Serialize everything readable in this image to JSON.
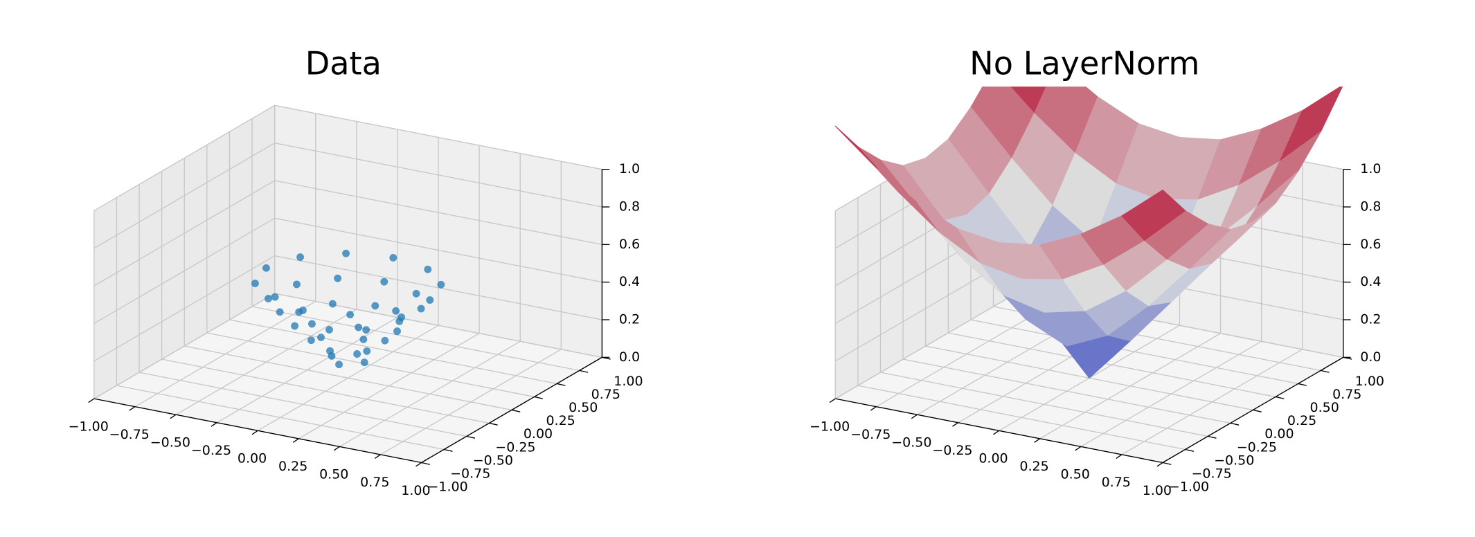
{
  "chart_data": [
    {
      "type": "scatter3d",
      "title": "Data",
      "color": "#1f77b4",
      "x": [
        0.1,
        0,
        -0.1,
        0,
        0.17,
        0,
        -0.17,
        -0.17,
        0,
        0.17,
        0.3,
        0.21,
        0,
        -0.21,
        -0.3,
        -0.21,
        0,
        0.21,
        0.38,
        0.24,
        0,
        -0.24,
        -0.38,
        -0.38,
        -0.24,
        0,
        0.24,
        0.38,
        0.5,
        0.43,
        0.25,
        0,
        -0.25,
        -0.43,
        -0.5,
        -0.43,
        -0.25,
        0,
        0.25,
        0.43
      ],
      "y": [
        0,
        0.1,
        0,
        -0.1,
        0.1,
        0.2,
        0.1,
        -0.1,
        -0.2,
        -0.1,
        0,
        0.21,
        0.3,
        0.21,
        0,
        -0.21,
        -0.3,
        -0.21,
        0.12,
        0.32,
        0.4,
        0.32,
        0.12,
        -0.12,
        -0.32,
        -0.4,
        -0.32,
        -0.12,
        0,
        0.25,
        0.43,
        0.5,
        0.43,
        0.25,
        0,
        -0.25,
        -0.43,
        -0.5,
        -0.43,
        -0.25
      ],
      "z": [
        0.1,
        0.1,
        0.1,
        0.1,
        0.2,
        0.2,
        0.2,
        0.2,
        0.2,
        0.2,
        0.3,
        0.3,
        0.3,
        0.3,
        0.3,
        0.3,
        0.3,
        0.3,
        0.4,
        0.4,
        0.4,
        0.4,
        0.4,
        0.4,
        0.4,
        0.4,
        0.4,
        0.4,
        0.5,
        0.5,
        0.5,
        0.5,
        0.5,
        0.5,
        0.5,
        0.5,
        0.5,
        0.5,
        0.5,
        0.5
      ],
      "xlim": [
        -1,
        1
      ],
      "ylim": [
        -1,
        1
      ],
      "zlim": [
        0,
        1
      ],
      "xticks": [
        {
          "value": -1,
          "label": "−1.00"
        },
        {
          "value": -0.75,
          "label": "−0.75"
        },
        {
          "value": -0.5,
          "label": "−0.50"
        },
        {
          "value": -0.25,
          "label": "−0.25"
        },
        {
          "value": 0,
          "label": "0.00"
        },
        0.25,
        {
          "value": 0.5,
          "label": "0.50"
        },
        0.75,
        {
          "value": 1,
          "label": "1.00"
        }
      ],
      "yticks": [
        {
          "value": -1,
          "label": "−1.00"
        },
        {
          "value": -0.75,
          "label": "−0.75"
        },
        {
          "value": -0.5,
          "label": "−0.50"
        },
        {
          "value": -0.25,
          "label": "−0.25"
        },
        {
          "value": 0,
          "label": "0.00"
        },
        0.25,
        {
          "value": 0.5,
          "label": "0.50"
        },
        0.75,
        {
          "value": 1,
          "label": "1.00"
        }
      ],
      "zticks": [
        {
          "value": 0,
          "label": "0.0"
        },
        0.2,
        0.4,
        0.6,
        0.8,
        {
          "value": 1,
          "label": "1.0"
        }
      ],
      "grid": true
    },
    {
      "type": "surface",
      "title": "No LayerNorm",
      "cmap": [
        "#3b4cc0",
        "#dddddd",
        "#b40426"
      ],
      "x": [
        -1,
        -0.75,
        -0.5,
        -0.25,
        0,
        0.25,
        0.5,
        0.75,
        1
      ],
      "y": [
        -1,
        -0.75,
        -0.5,
        -0.25,
        0,
        0.25,
        0.5,
        0.75,
        1
      ],
      "z": [
        [
          1.45,
          1.27,
          1.13,
          1.03,
          1.0,
          1.03,
          1.13,
          1.27,
          1.45
        ],
        [
          1.27,
          1.07,
          0.9,
          0.78,
          0.74,
          0.78,
          0.9,
          1.07,
          1.27
        ],
        [
          1.13,
          0.9,
          0.69,
          0.54,
          0.49,
          0.54,
          0.69,
          0.9,
          1.13
        ],
        [
          1.03,
          0.78,
          0.54,
          0.34,
          0.24,
          0.34,
          0.54,
          0.78,
          1.03
        ],
        [
          1.0,
          0.74,
          0.49,
          0.24,
          0,
          0.24,
          0.49,
          0.74,
          1.0
        ],
        [
          1.03,
          0.78,
          0.54,
          0.34,
          0.24,
          0.34,
          0.54,
          0.78,
          1.03
        ],
        [
          1.13,
          0.9,
          0.69,
          0.54,
          0.49,
          0.54,
          0.69,
          0.9,
          1.13
        ],
        [
          1.27,
          1.07,
          0.9,
          0.78,
          0.74,
          0.78,
          0.9,
          1.07,
          1.27
        ],
        [
          1.45,
          1.27,
          1.13,
          1.03,
          1.0,
          1.03,
          1.13,
          1.27,
          1.45
        ]
      ],
      "xlim": [
        -1,
        1
      ],
      "ylim": [
        -1,
        1
      ],
      "zlim": [
        0,
        1
      ],
      "xticks": [
        {
          "value": -1,
          "label": "−1.00"
        },
        {
          "value": -0.75,
          "label": "−0.75"
        },
        {
          "value": -0.5,
          "label": "−0.50"
        },
        {
          "value": -0.25,
          "label": "−0.25"
        },
        {
          "value": 0,
          "label": "0.00"
        },
        0.25,
        {
          "value": 0.5,
          "label": "0.50"
        },
        0.75,
        {
          "value": 1,
          "label": "1.00"
        }
      ],
      "yticks": [
        {
          "value": -1,
          "label": "−1.00"
        },
        {
          "value": -0.75,
          "label": "−0.75"
        },
        {
          "value": -0.5,
          "label": "−0.50"
        },
        {
          "value": -0.25,
          "label": "−0.25"
        },
        {
          "value": 0,
          "label": "0.00"
        },
        0.25,
        {
          "value": 0.5,
          "label": "0.50"
        },
        0.75,
        {
          "value": 1,
          "label": "1.00"
        }
      ],
      "zticks": [
        {
          "value": 0,
          "label": "0.0"
        },
        0.2,
        0.4,
        0.6,
        0.8,
        {
          "value": 1,
          "label": "1.0"
        }
      ],
      "grid": true
    }
  ]
}
